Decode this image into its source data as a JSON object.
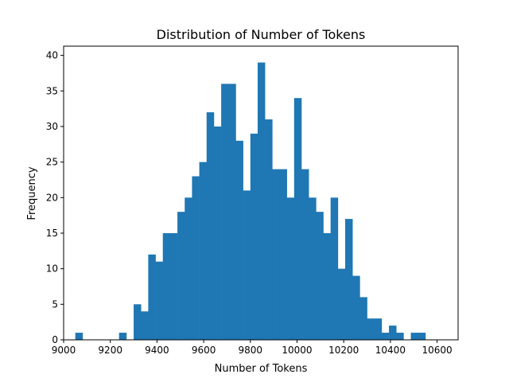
{
  "chart_data": {
    "type": "bar",
    "title": "Distribution of Number of Tokens",
    "xlabel": "Number of Tokens",
    "ylabel": "Frequency",
    "bins": {
      "start": 9050,
      "width": 31.25,
      "counts": [
        1,
        0,
        0,
        0,
        0,
        0,
        1,
        0,
        5,
        4,
        12,
        11,
        15,
        15,
        18,
        20,
        23,
        25,
        32,
        30,
        36,
        36,
        28,
        21,
        29,
        39,
        31,
        24,
        24,
        20,
        34,
        24,
        20,
        18,
        15,
        20,
        10,
        17,
        9,
        6,
        3,
        3,
        1,
        2,
        1,
        0,
        1,
        1
      ]
    },
    "xlim": [
      9000,
      10690
    ],
    "ylim": [
      0,
      41.3
    ],
    "xticks": [
      9000,
      9200,
      9400,
      9600,
      9800,
      10000,
      10200,
      10400,
      10600
    ],
    "yticks": [
      0,
      5,
      10,
      15,
      20,
      25,
      30,
      35,
      40
    ],
    "bar_color": "#1f77b4",
    "grid": false,
    "legend": "none"
  }
}
